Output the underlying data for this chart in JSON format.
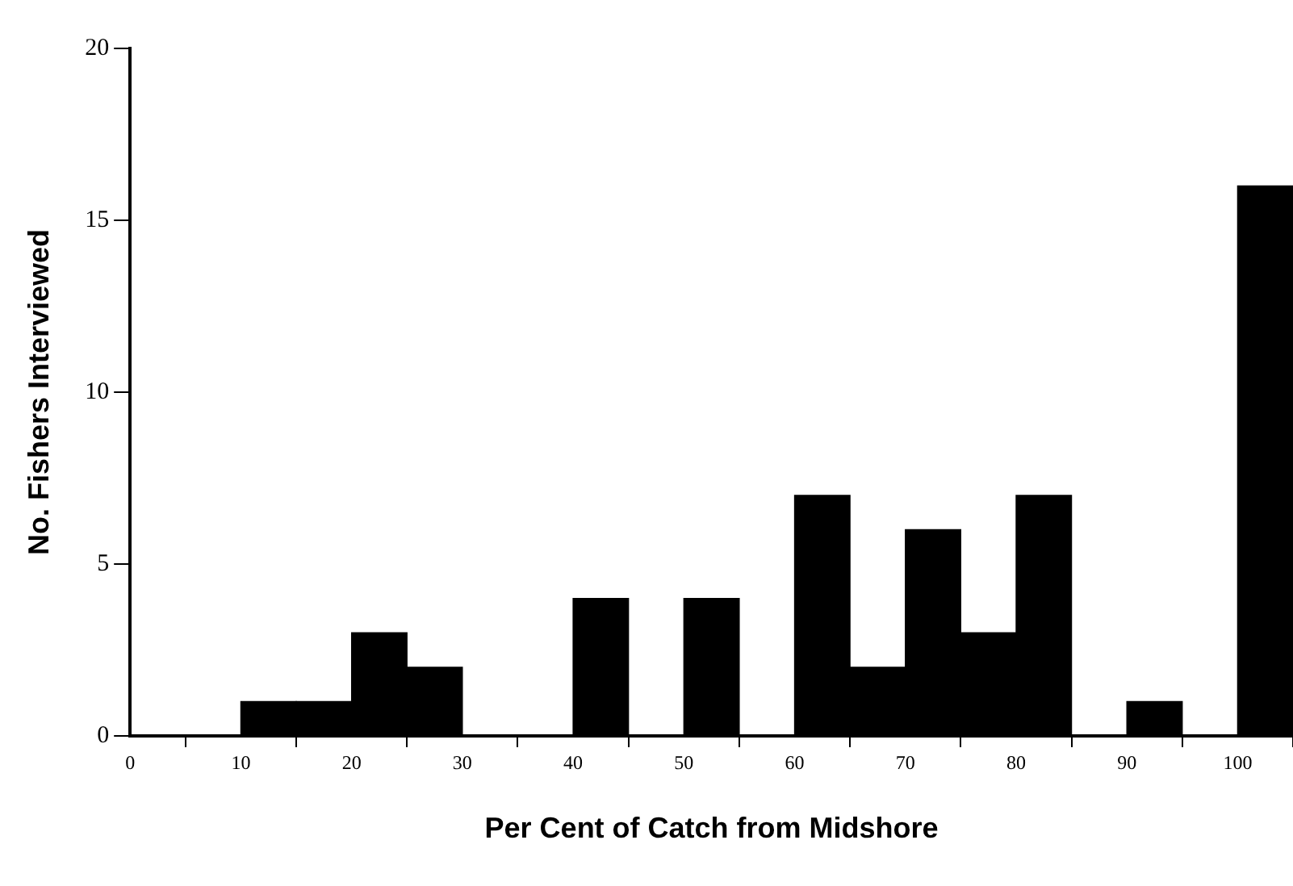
{
  "chart_data": {
    "type": "histogram",
    "xlabel": "Per Cent of Catch from Midshore",
    "ylabel": "No. Fishers Interviewed",
    "bins": [
      0,
      5,
      10,
      15,
      20,
      25,
      30,
      35,
      40,
      45,
      50,
      55,
      60,
      65,
      70,
      75,
      80,
      85,
      90,
      95,
      100,
      105
    ],
    "values": [
      0,
      0,
      1,
      1,
      3,
      2,
      0,
      0,
      4,
      0,
      4,
      0,
      7,
      2,
      6,
      3,
      7,
      0,
      1,
      0,
      16
    ],
    "color": "#000000",
    "xlim": [
      0,
      105
    ],
    "ylim": [
      0,
      20
    ],
    "xticks": [
      0,
      10,
      20,
      30,
      40,
      50,
      60,
      70,
      80,
      90,
      100
    ],
    "yticks": [
      0,
      5,
      10,
      15,
      20
    ],
    "grid": false,
    "legend": false
  }
}
